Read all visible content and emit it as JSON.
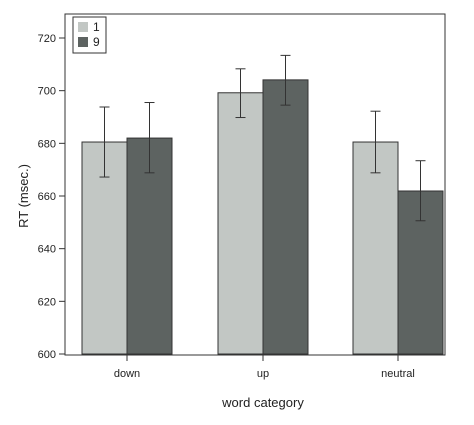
{
  "chart_data": {
    "type": "bar",
    "categories": [
      "down",
      "up",
      "neutral"
    ],
    "series": [
      {
        "name": "1",
        "color": "#c2c7c4",
        "values": [
          680.5,
          699.2,
          680.5
        ],
        "error": [
          [
            667.2,
            693.8
          ],
          [
            689.8,
            708.3
          ],
          [
            668.8,
            692.2
          ]
        ]
      },
      {
        "name": "9",
        "color": "#5d6361",
        "values": [
          682.0,
          704.1,
          661.9
        ],
        "error": [
          [
            668.8,
            695.5
          ],
          [
            694.5,
            713.4
          ],
          [
            650.6,
            673.4
          ]
        ]
      }
    ],
    "xlabel": "word category",
    "ylabel": "RT (msec.)",
    "ylim": [
      600,
      720
    ],
    "yticks": [
      600,
      620,
      640,
      660,
      680,
      700,
      720
    ],
    "legend": "top-left"
  }
}
